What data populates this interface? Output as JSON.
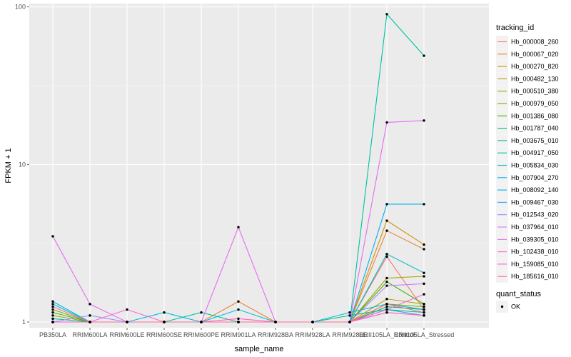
{
  "chart_data": {
    "type": "line",
    "xlabel": "sample_name",
    "ylabel": "FPKM + 1",
    "y_scale": "log10",
    "ylim": [
      0.92,
      105
    ],
    "y_ticks": [
      {
        "value": 1,
        "label": "1"
      },
      {
        "value": 10,
        "label": "10"
      },
      {
        "value": 100,
        "label": "100"
      }
    ],
    "grid": true,
    "categories": [
      "PB350LA",
      "RRIM600LA",
      "RRIM600LE",
      "RRIM600SE",
      "RRIM600PE",
      "RRIM901LA",
      "RRIM928BA",
      "RRIM928LA",
      "RRIM928LE",
      "RRII105LA_Control",
      "RRII105LA_Stressed"
    ],
    "series": [
      {
        "name": "Hb_000008_260",
        "color": "#F8766D",
        "values": [
          1.0,
          1.0,
          1.0,
          1.0,
          1.0,
          1.0,
          1.0,
          1.0,
          1.0,
          2.6,
          1.2
        ]
      },
      {
        "name": "Hb_000067_020",
        "color": "#EA8331",
        "values": [
          1.0,
          1.0,
          1.0,
          1.0,
          1.0,
          1.35,
          1.0,
          1.0,
          1.0,
          3.8,
          2.9
        ]
      },
      {
        "name": "Hb_000270_820",
        "color": "#D89000",
        "values": [
          1.0,
          1.0,
          1.0,
          1.0,
          1.0,
          1.0,
          1.0,
          1.0,
          1.0,
          4.4,
          3.1
        ]
      },
      {
        "name": "Hb_000482_130",
        "color": "#C09B00",
        "values": [
          1.0,
          1.0,
          1.0,
          1.0,
          1.0,
          1.0,
          1.0,
          1.0,
          1.0,
          1.4,
          1.3
        ]
      },
      {
        "name": "Hb_000510_380",
        "color": "#A3A500",
        "values": [
          1.1,
          1.0,
          1.0,
          1.0,
          1.0,
          1.0,
          1.0,
          1.0,
          1.0,
          1.9,
          1.95
        ]
      },
      {
        "name": "Hb_000979_050",
        "color": "#7CAE00",
        "values": [
          1.2,
          1.0,
          1.0,
          1.0,
          1.0,
          1.0,
          1.0,
          1.0,
          1.0,
          1.3,
          1.25
        ]
      },
      {
        "name": "Hb_001386_080",
        "color": "#39B600",
        "values": [
          1.15,
          1.0,
          1.0,
          1.0,
          1.0,
          1.0,
          1.0,
          1.0,
          1.0,
          1.8,
          1.3
        ]
      },
      {
        "name": "Hb_001787_040",
        "color": "#00BB4E",
        "values": [
          1.0,
          1.0,
          1.0,
          1.0,
          1.0,
          1.0,
          1.0,
          1.0,
          1.0,
          1.25,
          1.2
        ]
      },
      {
        "name": "Hb_003675_010",
        "color": "#00BF7D",
        "values": [
          1.0,
          1.0,
          1.0,
          1.0,
          1.0,
          1.0,
          1.0,
          1.0,
          1.1,
          1.2,
          1.15
        ]
      },
      {
        "name": "Hb_004917_050",
        "color": "#00C1A3",
        "values": [
          1.05,
          1.0,
          1.0,
          1.0,
          1.15,
          1.0,
          1.0,
          1.0,
          1.0,
          90.0,
          49.0
        ]
      },
      {
        "name": "Hb_005834_030",
        "color": "#00BFC4",
        "values": [
          1.3,
          1.0,
          1.0,
          1.0,
          1.0,
          1.0,
          1.0,
          1.0,
          1.0,
          2.7,
          2.05
        ]
      },
      {
        "name": "Hb_007904_270",
        "color": "#00BAE0",
        "values": [
          1.35,
          1.0,
          1.0,
          1.15,
          1.0,
          1.2,
          1.0,
          1.0,
          1.15,
          1.3,
          1.2
        ]
      },
      {
        "name": "Hb_008092_140",
        "color": "#00B0F6",
        "values": [
          1.0,
          1.0,
          1.0,
          1.0,
          1.0,
          1.0,
          1.0,
          1.0,
          1.0,
          5.6,
          5.6
        ]
      },
      {
        "name": "Hb_009467_030",
        "color": "#35A2FF",
        "values": [
          1.0,
          1.0,
          1.0,
          1.0,
          1.0,
          1.0,
          1.0,
          1.0,
          1.0,
          1.2,
          1.1
        ]
      },
      {
        "name": "Hb_012543_020",
        "color": "#9590FF",
        "values": [
          1.0,
          1.1,
          1.0,
          1.0,
          1.0,
          1.0,
          1.0,
          1.0,
          1.0,
          1.15,
          1.1
        ]
      },
      {
        "name": "Hb_037964_010",
        "color": "#C77CFF",
        "values": [
          1.0,
          1.0,
          1.0,
          1.0,
          1.0,
          1.0,
          1.0,
          1.0,
          1.0,
          1.7,
          1.75
        ]
      },
      {
        "name": "Hb_039305_010",
        "color": "#E76BF3",
        "values": [
          3.5,
          1.3,
          1.0,
          1.0,
          1.0,
          4.0,
          1.0,
          1.0,
          1.0,
          18.5,
          19.0
        ]
      },
      {
        "name": "Hb_102438_010",
        "color": "#FA62DB",
        "values": [
          1.0,
          1.0,
          1.2,
          1.0,
          1.0,
          1.0,
          1.0,
          1.0,
          1.0,
          1.2,
          1.5
        ]
      },
      {
        "name": "Hb_159085_010",
        "color": "#FF62BC",
        "values": [
          1.0,
          1.0,
          1.0,
          1.0,
          1.0,
          1.05,
          1.0,
          1.0,
          1.0,
          1.15,
          1.1
        ]
      },
      {
        "name": "Hb_185616_010",
        "color": "#FF6C91",
        "values": [
          1.25,
          1.0,
          1.0,
          1.0,
          1.0,
          1.0,
          1.0,
          1.0,
          1.0,
          1.3,
          1.15
        ]
      }
    ],
    "legends": [
      {
        "title": "tracking_id",
        "kind": "lines"
      },
      {
        "title": "quant_status",
        "kind": "points",
        "entries": [
          "OK"
        ]
      }
    ],
    "legend_position": "right"
  }
}
